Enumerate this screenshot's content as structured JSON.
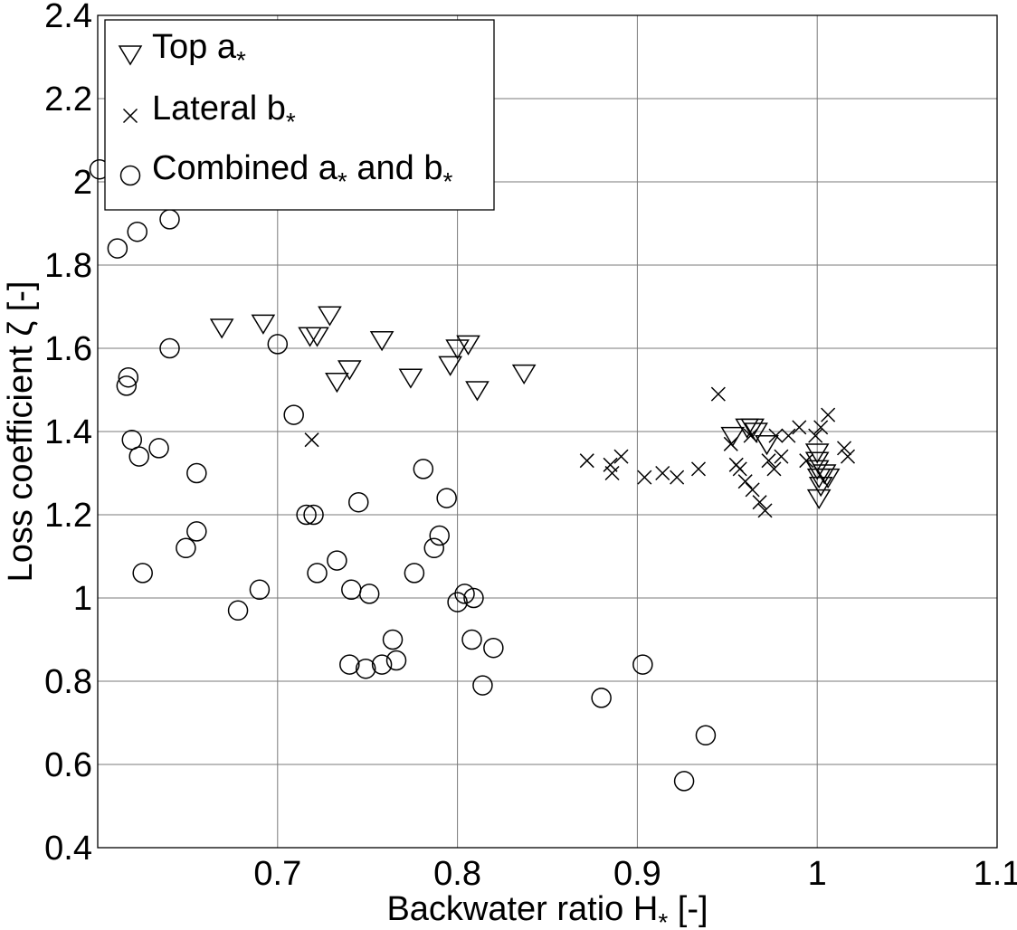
{
  "chart_data": {
    "type": "scatter",
    "xlabel": "Backwater ratio H",
    "xlabel_sub": "*",
    "xlabel_suffix": " [-]",
    "ylabel": "Loss coefficient ζ [-]",
    "xlim": [
      0.6,
      1.1
    ],
    "ylim": [
      0.4,
      2.4
    ],
    "xticks": [
      0.7,
      0.8,
      0.9,
      1,
      1.1
    ],
    "xtick_labels": [
      "0.7",
      "0.8",
      "0.9",
      "1",
      "1.1"
    ],
    "yticks": [
      0.4,
      0.6,
      0.8,
      1,
      1.2,
      1.4,
      1.6,
      1.8,
      2,
      2.2,
      2.4
    ],
    "ytick_labels": [
      "0.4",
      "0.6",
      "0.8",
      "1",
      "1.2",
      "1.4",
      "1.6",
      "1.8",
      "2",
      "2.2",
      "2.4"
    ],
    "grid": true,
    "legend_position": "top-left",
    "series": [
      {
        "name": "Top a*",
        "legend_base": "Top a",
        "legend_sub": "*",
        "legend_tail": "",
        "marker": "triangle-down",
        "points": [
          [
            0.669,
            1.65
          ],
          [
            0.692,
            1.66
          ],
          [
            0.718,
            1.63
          ],
          [
            0.722,
            1.63
          ],
          [
            0.729,
            1.68
          ],
          [
            0.733,
            1.52
          ],
          [
            0.74,
            1.55
          ],
          [
            0.758,
            1.62
          ],
          [
            0.774,
            1.53
          ],
          [
            0.796,
            1.56
          ],
          [
            0.8,
            1.6
          ],
          [
            0.806,
            1.61
          ],
          [
            0.811,
            1.5
          ],
          [
            0.837,
            1.54
          ],
          [
            0.953,
            1.39
          ],
          [
            0.961,
            1.41
          ],
          [
            0.964,
            1.41
          ],
          [
            0.966,
            1.4
          ],
          [
            0.972,
            1.37
          ],
          [
            1.0,
            1.35
          ],
          [
            1.0,
            1.33
          ],
          [
            1.0,
            1.31
          ],
          [
            1.001,
            1.29
          ],
          [
            1.002,
            1.27
          ],
          [
            1.001,
            1.24
          ],
          [
            1.004,
            1.3
          ],
          [
            1.006,
            1.29
          ]
        ]
      },
      {
        "name": "Lateral b*",
        "legend_base": "Lateral b",
        "legend_sub": "*",
        "legend_tail": "",
        "marker": "x",
        "points": [
          [
            0.719,
            1.38
          ],
          [
            0.872,
            1.33
          ],
          [
            0.885,
            1.32
          ],
          [
            0.886,
            1.3
          ],
          [
            0.891,
            1.34
          ],
          [
            0.904,
            1.29
          ],
          [
            0.914,
            1.3
          ],
          [
            0.922,
            1.29
          ],
          [
            0.934,
            1.31
          ],
          [
            0.945,
            1.49
          ],
          [
            0.952,
            1.37
          ],
          [
            0.955,
            1.32
          ],
          [
            0.957,
            1.31
          ],
          [
            0.96,
            1.28
          ],
          [
            0.963,
            1.39
          ],
          [
            0.964,
            1.26
          ],
          [
            0.968,
            1.23
          ],
          [
            0.971,
            1.21
          ],
          [
            0.973,
            1.33
          ],
          [
            0.976,
            1.31
          ],
          [
            0.977,
            1.39
          ],
          [
            0.98,
            1.34
          ],
          [
            0.984,
            1.39
          ],
          [
            0.99,
            1.41
          ],
          [
            0.994,
            1.33
          ],
          [
            0.999,
            1.39
          ],
          [
            1.002,
            1.41
          ],
          [
            1.006,
            1.44
          ],
          [
            1.015,
            1.36
          ],
          [
            1.017,
            1.34
          ]
        ]
      },
      {
        "name": "Combined a* and b*",
        "legend_base": "Combined a",
        "legend_sub": "*",
        "legend_tail": " and b",
        "legend_sub2": "*",
        "marker": "circle",
        "points": [
          [
            0.601,
            2.03
          ],
          [
            0.611,
            1.84
          ],
          [
            0.622,
            1.88
          ],
          [
            0.64,
            1.91
          ],
          [
            0.64,
            1.6
          ],
          [
            0.617,
            1.53
          ],
          [
            0.616,
            1.51
          ],
          [
            0.619,
            1.38
          ],
          [
            0.634,
            1.36
          ],
          [
            0.623,
            1.34
          ],
          [
            0.655,
            1.3
          ],
          [
            0.655,
            1.16
          ],
          [
            0.649,
            1.12
          ],
          [
            0.625,
            1.06
          ],
          [
            0.678,
            0.97
          ],
          [
            0.69,
            1.02
          ],
          [
            0.7,
            1.61
          ],
          [
            0.709,
            1.44
          ],
          [
            0.716,
            1.2
          ],
          [
            0.72,
            1.2
          ],
          [
            0.722,
            1.06
          ],
          [
            0.733,
            1.09
          ],
          [
            0.741,
            1.02
          ],
          [
            0.74,
            0.84
          ],
          [
            0.749,
            0.83
          ],
          [
            0.758,
            0.84
          ],
          [
            0.766,
            0.85
          ],
          [
            0.745,
            1.23
          ],
          [
            0.751,
            1.01
          ],
          [
            0.764,
            0.9
          ],
          [
            0.776,
            1.06
          ],
          [
            0.781,
            1.31
          ],
          [
            0.787,
            1.12
          ],
          [
            0.79,
            1.15
          ],
          [
            0.794,
            1.24
          ],
          [
            0.8,
            0.99
          ],
          [
            0.804,
            1.01
          ],
          [
            0.809,
            1.0
          ],
          [
            0.808,
            0.9
          ],
          [
            0.814,
            0.79
          ],
          [
            0.82,
            0.88
          ],
          [
            0.88,
            0.76
          ],
          [
            0.903,
            0.84
          ],
          [
            0.926,
            0.56
          ],
          [
            0.938,
            0.67
          ]
        ]
      }
    ]
  }
}
